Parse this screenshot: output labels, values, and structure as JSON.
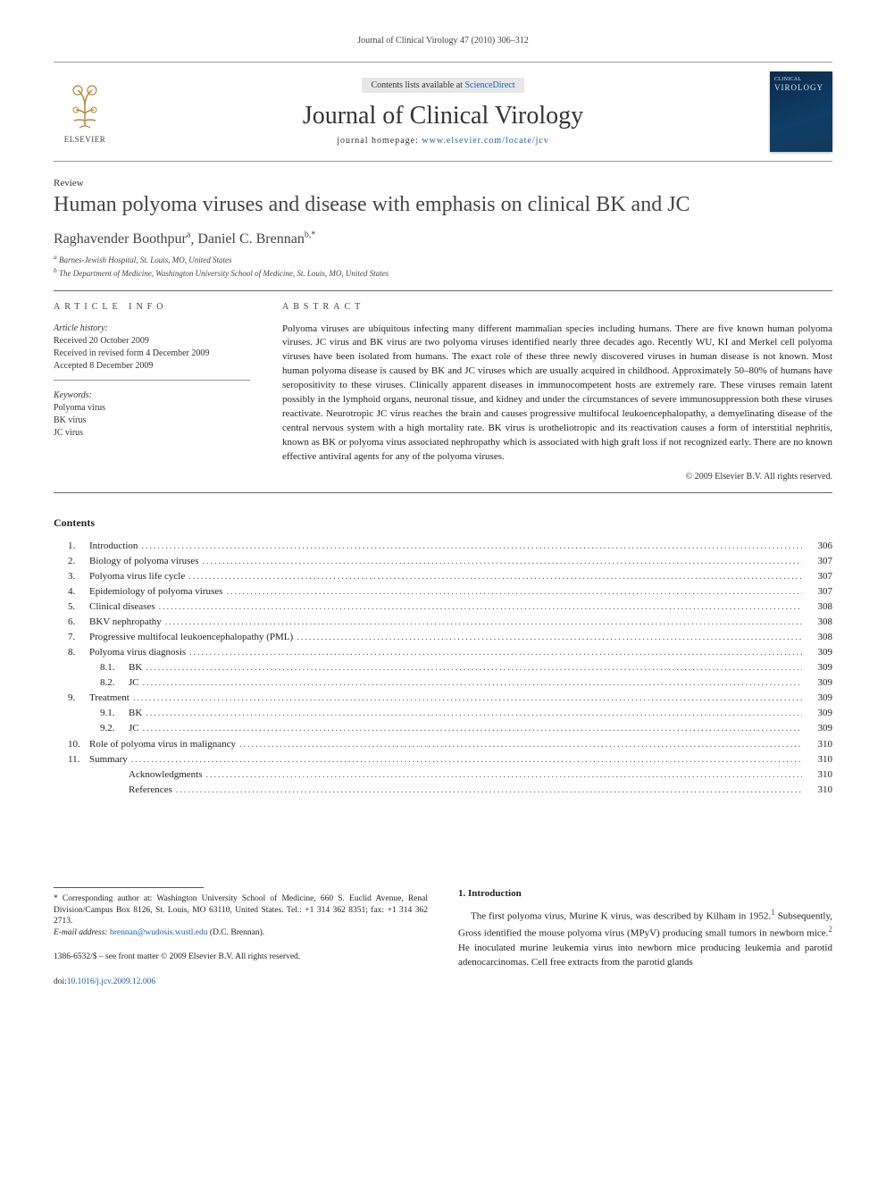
{
  "runningHead": "Journal of Clinical Virology 47 (2010) 306–312",
  "masthead": {
    "contentsPrefix": "Contents lists available at ",
    "contentsLink": "ScienceDirect",
    "journalName": "Journal of Clinical Virology",
    "homepagePrefix": "journal homepage: ",
    "homepageLink": "www.elsevier.com/locate/jcv",
    "publisherBrand": "ELSEVIER",
    "coverLine1": "CLINICAL",
    "coverLine2": "VIROLOGY"
  },
  "articleType": "Review",
  "title": "Human polyoma viruses and disease with emphasis on clinical BK and JC",
  "authors": [
    {
      "name": "Raghavender Boothpur",
      "marks": "a"
    },
    {
      "name": "Daniel C. Brennan",
      "marks": "b,*"
    }
  ],
  "affiliations": [
    {
      "mark": "a",
      "text": "Barnes-Jewish Hospital, St. Louis, MO, United States"
    },
    {
      "mark": "b",
      "text": "The Department of Medicine, Washington University School of Medicine, St. Louis, MO, United States"
    }
  ],
  "sectionLabels": {
    "articleInfo": "ARTICLE INFO",
    "abstractLabel": "ABSTRACT"
  },
  "articleInfo": {
    "historyHeader": "Article history:",
    "historyLines": [
      "Received 20 October 2009",
      "Received in revised form 4 December 2009",
      "Accepted 8 December 2009"
    ],
    "keywordsHeader": "Keywords:",
    "keywords": [
      "Polyoma virus",
      "BK virus",
      "JC virus"
    ]
  },
  "abstractText": "Polyoma viruses are ubiquitous infecting many different mammalian species including humans. There are five known human polyoma viruses. JC virus and BK virus are two polyoma viruses identified nearly three decades ago. Recently WU, KI and Merkel cell polyoma viruses have been isolated from humans. The exact role of these three newly discovered viruses in human disease is not known. Most human polyoma disease is caused by BK and JC viruses which are usually acquired in childhood. Approximately 50–80% of humans have seropositivity to these viruses. Clinically apparent diseases in immunocompetent hosts are extremely rare. These viruses remain latent possibly in the lymphoid organs, neuronal tissue, and kidney and under the circumstances of severe immunosuppression both these viruses reactivate. Neurotropic JC virus reaches the brain and causes progressive multifocal leukoencephalopathy, a demyelinating disease of the central nervous system with a high mortality rate. BK virus is urotheliotropic and its reactivation causes a form of interstitial nephritis, known as BK or polyoma virus associated nephropathy which is associated with high graft loss if not recognized early. There are no known effective antiviral agents for any of the polyoma viruses.",
  "copyright": "© 2009 Elsevier B.V. All rights reserved.",
  "contentsHeading": "Contents",
  "toc": [
    {
      "num": "1.",
      "label": "Introduction",
      "page": "306",
      "indent": 1
    },
    {
      "num": "2.",
      "label": "Biology of polyoma viruses",
      "page": "307",
      "indent": 1
    },
    {
      "num": "3.",
      "label": "Polyoma virus life cycle",
      "page": "307",
      "indent": 1
    },
    {
      "num": "4.",
      "label": "Epidemiology of polyoma viruses",
      "page": "307",
      "indent": 1
    },
    {
      "num": "5.",
      "label": "Clinical diseases",
      "page": "308",
      "indent": 1
    },
    {
      "num": "6.",
      "label": "BKV nephropathy",
      "page": "308",
      "indent": 1
    },
    {
      "num": "7.",
      "label": "Progressive multifocal leukoencephalopathy (PML)",
      "page": "308",
      "indent": 1
    },
    {
      "num": "8.",
      "label": "Polyoma virus diagnosis",
      "page": "309",
      "indent": 1
    },
    {
      "num": "8.1.",
      "label": "BK",
      "page": "309",
      "indent": 2
    },
    {
      "num": "8.2.",
      "label": "JC",
      "page": "309",
      "indent": 2
    },
    {
      "num": "9.",
      "label": "Treatment",
      "page": "309",
      "indent": 1
    },
    {
      "num": "9.1.",
      "label": "BK",
      "page": "309",
      "indent": 2
    },
    {
      "num": "9.2.",
      "label": "JC",
      "page": "309",
      "indent": 2
    },
    {
      "num": "10.",
      "label": "Role of polyoma virus in malignancy",
      "page": "310",
      "indent": 1
    },
    {
      "num": "11.",
      "label": "Summary",
      "page": "310",
      "indent": 1
    },
    {
      "num": "",
      "label": "Acknowledgments",
      "page": "310",
      "indent": 2
    },
    {
      "num": "",
      "label": "References",
      "page": "310",
      "indent": 2
    }
  ],
  "footnotes": {
    "correspondingPrefix": "* Corresponding author at: ",
    "correspondingText": "Washington University School of Medicine, 660 S. Euclid Avenue, Renal Division/Campus Box 8126, St. Louis, MO 63110, United States. Tel.: +1 314 362 8351; fax: +1 314 362 2713.",
    "emailLabel": "E-mail address: ",
    "email": "brennan@wudosis.wustl.edu",
    "emailSuffix": " (D.C. Brennan)."
  },
  "footer": {
    "line1": "1386-6532/$ – see front matter © 2009 Elsevier B.V. All rights reserved.",
    "doiPrefix": "doi:",
    "doi": "10.1016/j.jcv.2009.12.006"
  },
  "body": {
    "introHeading": "1. Introduction",
    "introPara": "The first polyoma virus, Murine K virus, was described by Kilham in 1952.",
    "introRef1": "1",
    "introPara2": " Subsequently, Gross identified the mouse polyoma virus (MPyV) producing small tumors in newborn mice.",
    "introRef2": "2",
    "introPara3": " He inoculated murine leukemia virus into newborn mice producing leukemia and parotid adenocarcinomas. Cell free extracts from the parotid glands"
  }
}
